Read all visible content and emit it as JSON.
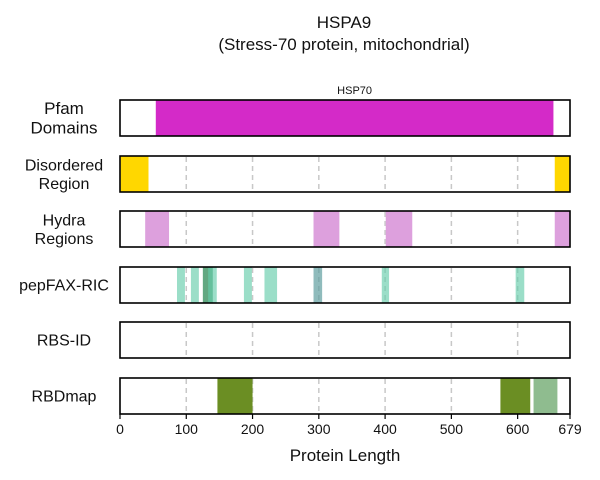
{
  "title": "HSPA9",
  "subtitle": "(Stress-70 protein, mitochondrial)",
  "chart_data": {
    "type": "bar",
    "xlabel": "Protein Length",
    "xlim": [
      0,
      679
    ],
    "xticks": [
      0,
      100,
      200,
      300,
      400,
      500,
      600,
      679
    ],
    "grid": "vertical dashed at 100, 200, 300, 400, 500, 600",
    "tracks": [
      {
        "label_lines": [
          "Pfam",
          "Domains"
        ],
        "segments": [
          {
            "start": 54,
            "end": 654,
            "color": "#d42ac8",
            "label": "HSP70"
          }
        ]
      },
      {
        "label_lines": [
          "Disordered",
          "Region"
        ],
        "segments": [
          {
            "start": 1,
            "end": 43,
            "color": "#ffd700"
          },
          {
            "start": 656,
            "end": 679,
            "color": "#ffd700"
          }
        ]
      },
      {
        "label_lines": [
          "Hydra",
          "Regions"
        ],
        "segments": [
          {
            "start": 38,
            "end": 74,
            "color": "#dda0dd"
          },
          {
            "start": 292,
            "end": 331,
            "color": "#dda0dd"
          },
          {
            "start": 401,
            "end": 441,
            "color": "#dda0dd"
          },
          {
            "start": 656,
            "end": 679,
            "color": "#dda0dd"
          }
        ]
      },
      {
        "label_lines": [
          "pepFAX-RIC"
        ],
        "segments": [
          {
            "start": 86,
            "end": 98,
            "color": "#66cdaa",
            "opacity": 0.65
          },
          {
            "start": 107,
            "end": 119,
            "color": "#66cdaa",
            "opacity": 0.65
          },
          {
            "start": 125,
            "end": 140,
            "color": "#2e8b57",
            "opacity": 0.75
          },
          {
            "start": 133,
            "end": 146,
            "color": "#66cdaa",
            "opacity": 0.65
          },
          {
            "start": 187,
            "end": 199,
            "color": "#66cdaa",
            "opacity": 0.65
          },
          {
            "start": 218,
            "end": 237,
            "color": "#66cdaa",
            "opacity": 0.65
          },
          {
            "start": 292,
            "end": 305,
            "color": "#5f9ea0",
            "opacity": 0.7
          },
          {
            "start": 395,
            "end": 406,
            "color": "#66cdaa",
            "opacity": 0.65
          },
          {
            "start": 597,
            "end": 610,
            "color": "#66cdaa",
            "opacity": 0.65
          }
        ]
      },
      {
        "label_lines": [
          "RBS-ID"
        ],
        "segments": []
      },
      {
        "label_lines": [
          "RBDmap"
        ],
        "segments": [
          {
            "start": 147,
            "end": 200,
            "color": "#6b8e23"
          },
          {
            "start": 574,
            "end": 619,
            "color": "#6b8e23"
          },
          {
            "start": 624,
            "end": 660,
            "color": "#8fbc8f"
          }
        ]
      }
    ]
  }
}
